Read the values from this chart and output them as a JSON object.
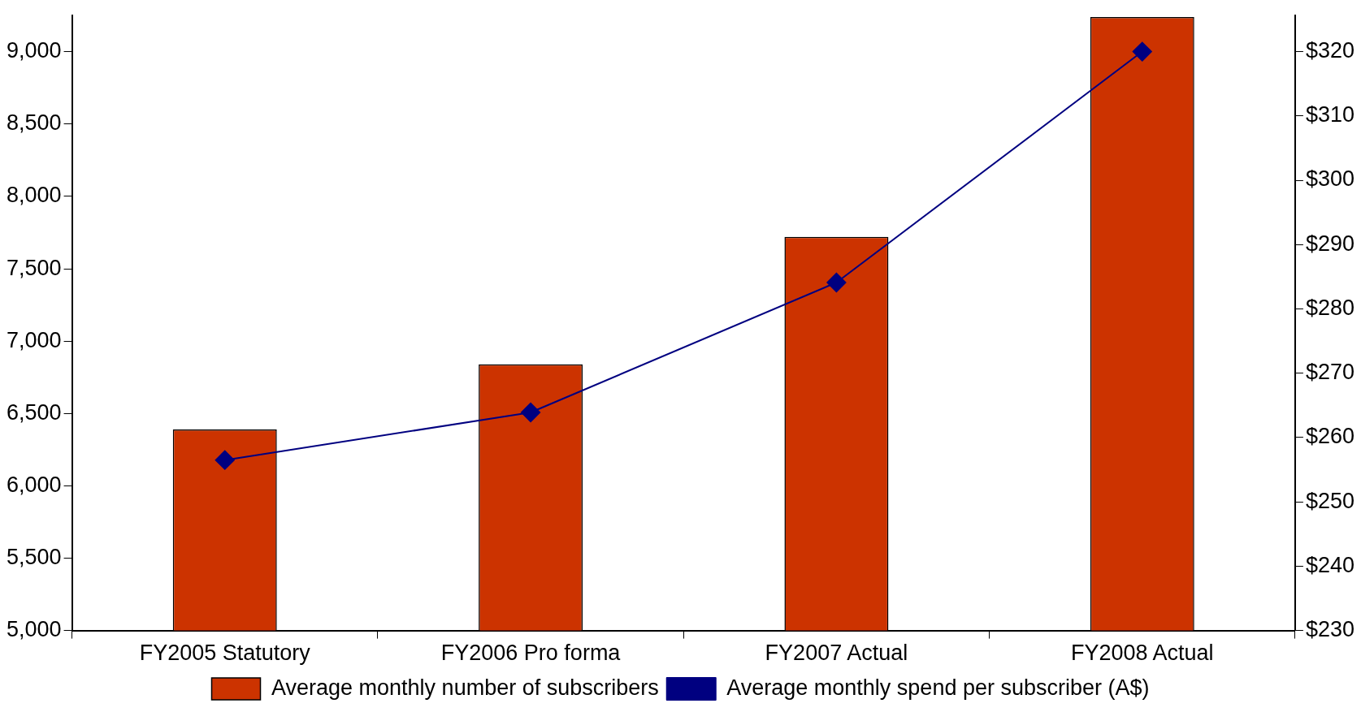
{
  "chart_data": {
    "type": "bar",
    "categories": [
      "FY2005 Statutory",
      "FY2006 Pro forma",
      "FY2007 Actual",
      "FY2008 Actual"
    ],
    "series": [
      {
        "name": "Average monthly number of subscribers",
        "color": "#cc3300",
        "values": [
          6390,
          6840,
          7720,
          9240
        ]
      },
      {
        "name": "Average monthly spend per subscriber (A$)",
        "type": "line",
        "axis": "y2",
        "color": "#000080",
        "values": [
          256.5,
          263.9,
          284.1,
          320
        ]
      }
    ],
    "ylim": [
      5000,
      9250
    ],
    "yticks": [
      {
        "value": 5000,
        "label": "5,000"
      },
      {
        "value": 5500,
        "label": "5,500"
      },
      {
        "value": 6000,
        "label": "6,000"
      },
      {
        "value": 6500,
        "label": "6,500"
      },
      {
        "value": 7000,
        "label": "7,000"
      },
      {
        "value": 7500,
        "label": "7,500"
      },
      {
        "value": 8000,
        "label": "8,000"
      },
      {
        "value": 8500,
        "label": "8,500"
      },
      {
        "value": 9000,
        "label": "9,000"
      }
    ],
    "y2lim": [
      230,
      325.6
    ],
    "y2ticks": [
      {
        "value": 230,
        "label": "$230"
      },
      {
        "value": 240,
        "label": "$240"
      },
      {
        "value": 250,
        "label": "$250"
      },
      {
        "value": 260,
        "label": "$260"
      },
      {
        "value": 270,
        "label": "$270"
      },
      {
        "value": 280,
        "label": "$280"
      },
      {
        "value": 290,
        "label": "$290"
      },
      {
        "value": 300,
        "label": "$300"
      },
      {
        "value": 310,
        "label": "$310"
      },
      {
        "value": 320,
        "label": "$320"
      }
    ],
    "grid": false,
    "legend": "bottom",
    "marker": "diamond"
  }
}
